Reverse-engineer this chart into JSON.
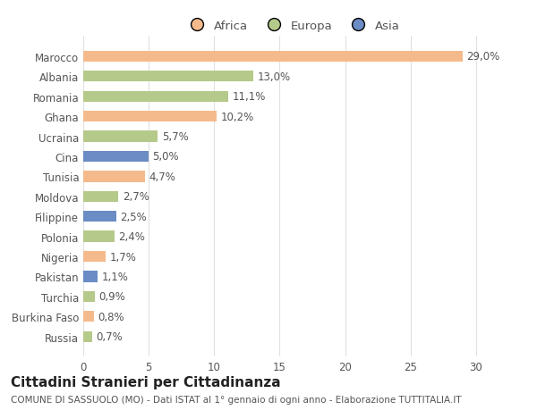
{
  "countries": [
    "Marocco",
    "Albania",
    "Romania",
    "Ghana",
    "Ucraina",
    "Cina",
    "Tunisia",
    "Moldova",
    "Filippine",
    "Polonia",
    "Nigeria",
    "Pakistan",
    "Turchia",
    "Burkina Faso",
    "Russia"
  ],
  "values": [
    29.0,
    13.0,
    11.1,
    10.2,
    5.7,
    5.0,
    4.7,
    2.7,
    2.5,
    2.4,
    1.7,
    1.1,
    0.9,
    0.8,
    0.7
  ],
  "labels": [
    "29,0%",
    "13,0%",
    "11,1%",
    "10,2%",
    "5,7%",
    "5,0%",
    "4,7%",
    "2,7%",
    "2,5%",
    "2,4%",
    "1,7%",
    "1,1%",
    "0,9%",
    "0,8%",
    "0,7%"
  ],
  "continents": [
    "Africa",
    "Europa",
    "Europa",
    "Africa",
    "Europa",
    "Asia",
    "Africa",
    "Europa",
    "Asia",
    "Europa",
    "Africa",
    "Asia",
    "Europa",
    "Africa",
    "Europa"
  ],
  "colors": {
    "Africa": "#F5BA8C",
    "Europa": "#B5C98A",
    "Asia": "#6B8CC4"
  },
  "xlim": [
    0,
    32
  ],
  "xticks": [
    0,
    5,
    10,
    15,
    20,
    25,
    30
  ],
  "title": "Cittadini Stranieri per Cittadinanza",
  "subtitle": "COMUNE DI SASSUOLO (MO) - Dati ISTAT al 1° gennaio di ogni anno - Elaborazione TUTTITALIA.IT",
  "background_color": "#ffffff",
  "grid_color": "#e0e0e0",
  "bar_height": 0.55,
  "label_fontsize": 8.5,
  "ytick_fontsize": 8.5,
  "xtick_fontsize": 8.5,
  "title_fontsize": 11,
  "subtitle_fontsize": 7.5,
  "legend_fontsize": 9.5
}
